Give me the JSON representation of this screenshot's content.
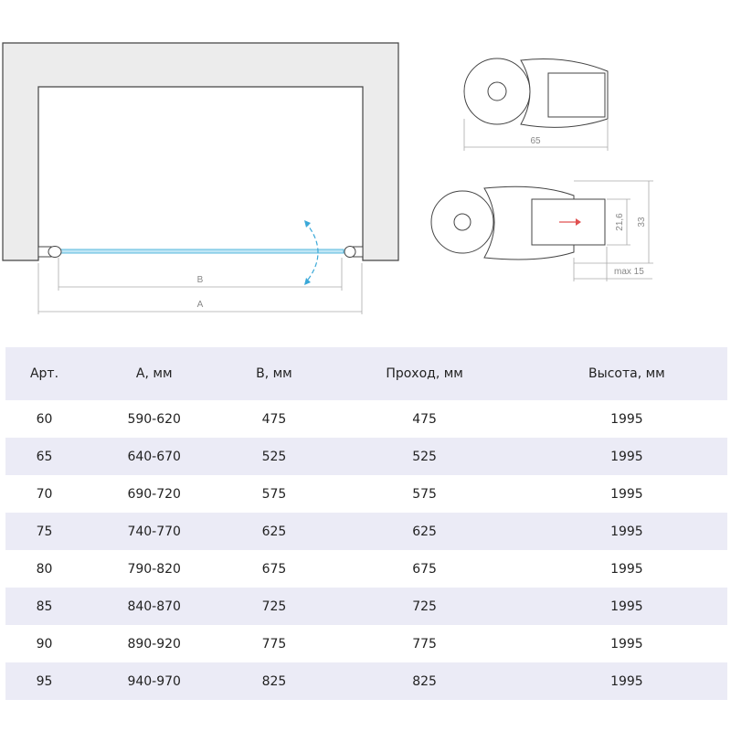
{
  "diagram": {
    "dim_b": "B",
    "dim_a": "A",
    "profile_width": "65",
    "profile_inner": "21,6",
    "profile_height": "33",
    "profile_adjust": "max 15",
    "glass_color": "#5ab8dd",
    "arrow_color": "#3aa8d8",
    "adjust_arrow_color": "#e05050"
  },
  "table": {
    "headers": [
      "Арт.",
      "А, мм",
      "В, мм",
      "Проход, мм",
      "Высота, мм"
    ],
    "rows": [
      [
        "60",
        "590-620",
        "475",
        "475",
        "1995"
      ],
      [
        "65",
        "640-670",
        "525",
        "525",
        "1995"
      ],
      [
        "70",
        "690-720",
        "575",
        "575",
        "1995"
      ],
      [
        "75",
        "740-770",
        "625",
        "625",
        "1995"
      ],
      [
        "80",
        "790-820",
        "675",
        "675",
        "1995"
      ],
      [
        "85",
        "840-870",
        "725",
        "725",
        "1995"
      ],
      [
        "90",
        "890-920",
        "775",
        "775",
        "1995"
      ],
      [
        "95",
        "940-970",
        "825",
        "825",
        "1995"
      ]
    ]
  }
}
